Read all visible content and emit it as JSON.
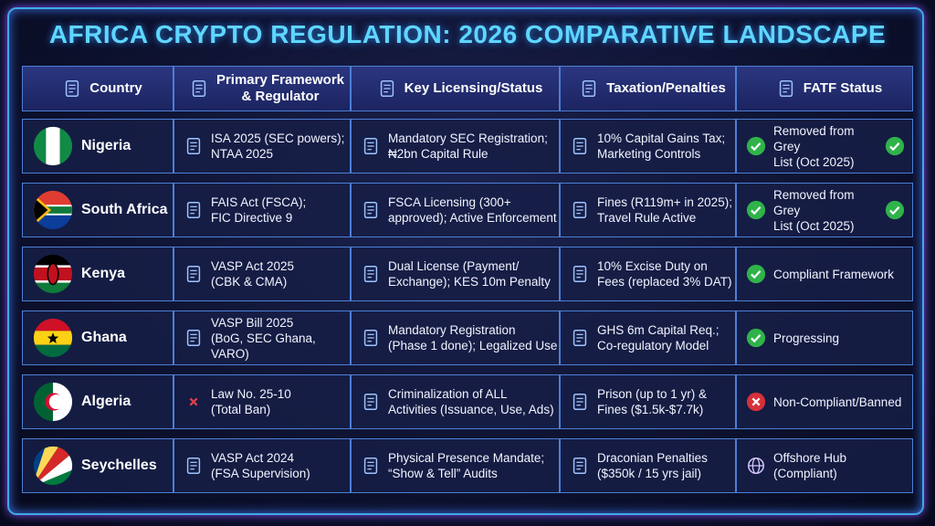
{
  "title": "AFRICA CRYPTO REGULATION: 2026 COMPARATIVE LANDSCAPE",
  "table": {
    "headers": [
      [
        "Country"
      ],
      [
        "Primary Framework",
        "& Regulator"
      ],
      [
        "Key Licensing/Status"
      ],
      [
        "Taxation/Penalties"
      ],
      [
        "FATF Status"
      ]
    ],
    "rows": [
      {
        "country": "Nigeria",
        "cells": [
          [
            "ISA 2025 (SEC powers);",
            "NTAA 2025"
          ],
          [
            "Mandatory SEC Registration;",
            "₦2bn Capital Rule"
          ],
          [
            "10% Capital Gains Tax;",
            "Marketing Controls"
          ],
          [
            "Removed from Grey",
            "List (Oct 2025)"
          ]
        ]
      },
      {
        "country": "South Africa",
        "cells": [
          [
            "FAIS Act (FSCA);",
            "FIC Directive 9"
          ],
          [
            "FSCA Licensing (300+",
            "approved); Active Enforcement"
          ],
          [
            "Fines (R119m+ in 2025);",
            "Travel Rule Active"
          ],
          [
            "Removed from Grey",
            "List (Oct 2025)"
          ]
        ]
      },
      {
        "country": "Kenya",
        "cells": [
          [
            "VASP Act 2025",
            "(CBK & CMA)"
          ],
          [
            "Dual License (Payment/",
            "Exchange); KES 10m Penalty"
          ],
          [
            "10% Excise Duty on",
            "Fees (replaced 3% DAT)"
          ],
          [
            "Compliant Framework"
          ]
        ]
      },
      {
        "country": "Ghana",
        "cells": [
          [
            "VASP Bill 2025",
            "(BoG, SEC Ghana, VARO)"
          ],
          [
            "Mandatory Registration",
            "(Phase 1 done); Legalized Use"
          ],
          [
            "GHS 6m Capital Req.;",
            "Co-regulatory Model"
          ],
          [
            "Progressing"
          ]
        ]
      },
      {
        "country": "Algeria",
        "cells": [
          [
            "Law No. 25-10",
            "(Total Ban)"
          ],
          [
            "Criminalization of ALL",
            "Activities (Issuance, Use, Ads)"
          ],
          [
            "Prison (up to 1 yr) &",
            "Fines ($1.5k-$7.7k)"
          ],
          [
            "Non-Compliant/Banned"
          ]
        ]
      },
      {
        "country": "Seychelles",
        "cells": [
          [
            "VASP Act 2024",
            "(FSA Supervision)"
          ],
          [
            "Physical Presence Mandate;",
            "“Show & Tell” Audits"
          ],
          [
            "Draconian Penalties",
            "($350k / 15 yrs jail)"
          ],
          [
            "Offshore Hub",
            "(Compliant)"
          ]
        ]
      }
    ]
  }
}
